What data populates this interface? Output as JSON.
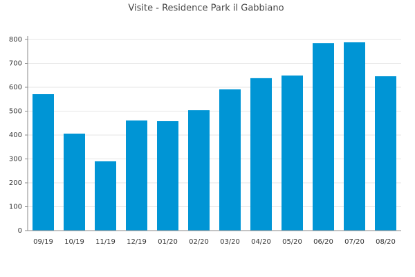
{
  "chart_data": {
    "type": "bar",
    "title": "Visite - Residence Park il Gabbiano",
    "categories": [
      "09/19",
      "10/19",
      "11/19",
      "12/19",
      "01/20",
      "02/20",
      "03/20",
      "04/20",
      "05/20",
      "06/20",
      "07/20",
      "08/20"
    ],
    "values": [
      571,
      406,
      290,
      461,
      458,
      504,
      591,
      638,
      649,
      785,
      788,
      646
    ],
    "color": "#0095d5",
    "ylim": [
      0,
      800
    ],
    "yticks": [
      0,
      100,
      200,
      300,
      400,
      500,
      600,
      700,
      800
    ],
    "grid": true
  }
}
